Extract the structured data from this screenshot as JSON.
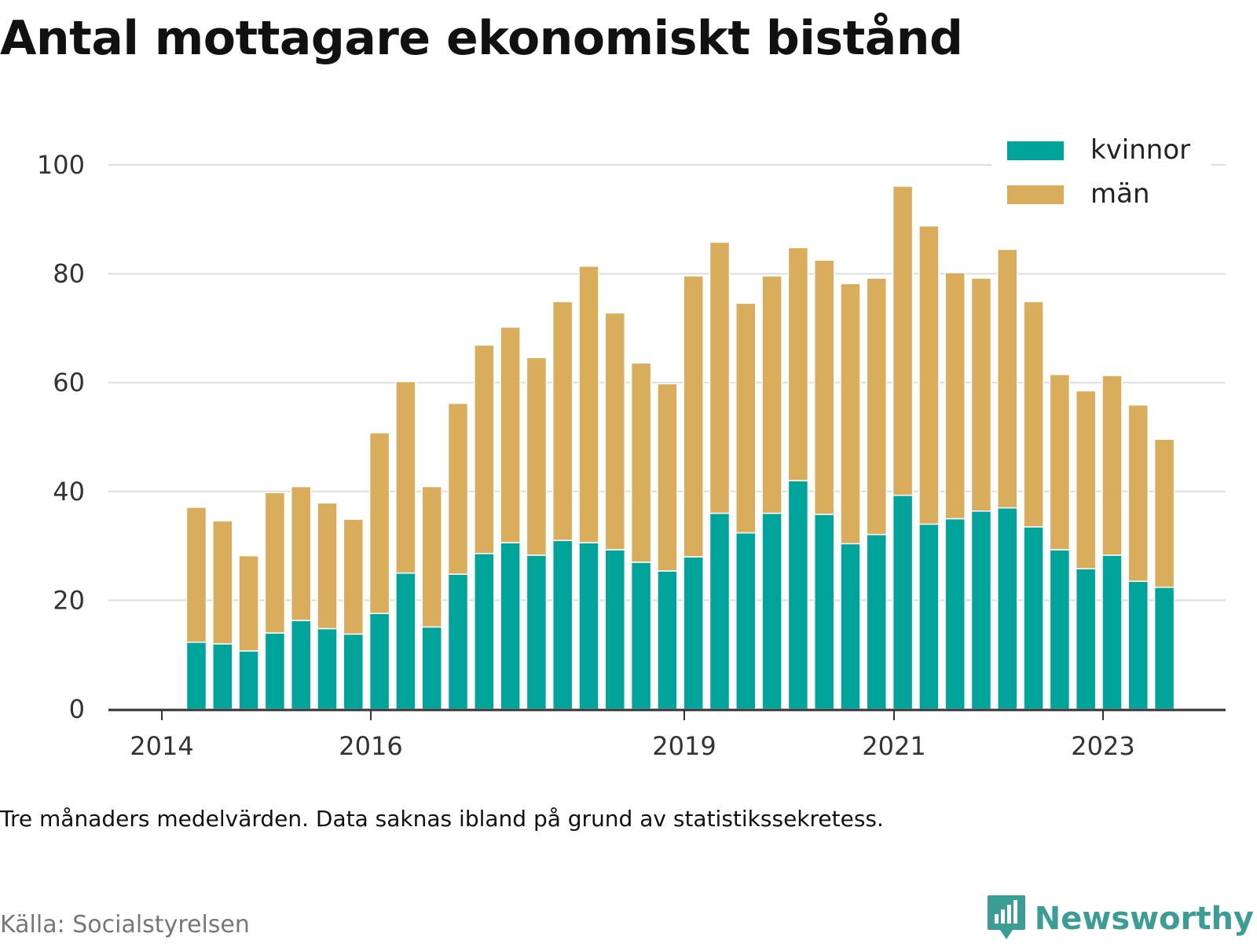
{
  "title": "Antal mottagare ekonomiskt bistånd",
  "note": "Tre månaders medelvärden. Data saknas ibland på grund av statistikssekretess.",
  "source": "Källa: Socialstyrelsen",
  "brand": {
    "name": "Newsworthy",
    "icon": "newsworthy-logo-icon",
    "color": "#3a9e94"
  },
  "colors": {
    "kvinnor": "#00a49a",
    "man": "#d9ad5b",
    "grid": "#dddddd",
    "axis": "#333333"
  },
  "chart_data": {
    "type": "bar",
    "stacked": true,
    "ylim": [
      0,
      100
    ],
    "yticks": [
      0,
      20,
      40,
      60,
      80,
      100
    ],
    "xticks": [
      "2014",
      "2016",
      "2019",
      "2021",
      "2023"
    ],
    "grid": true,
    "legend_position": "top-right",
    "series": [
      {
        "name": "kvinnor",
        "color": "#00a49a",
        "values": [
          12.3,
          12.0,
          10.7,
          14.0,
          16.3,
          14.8,
          13.8,
          17.6,
          25.0,
          15.1,
          24.8,
          28.6,
          30.6,
          28.3,
          31.0,
          30.6,
          29.3,
          27.0,
          25.4,
          28.0,
          36.0,
          32.4,
          36.0,
          42.0,
          35.8,
          30.4,
          32.1,
          39.3,
          34.0,
          35.0,
          36.4,
          37.0,
          33.5,
          29.3,
          25.8,
          28.3,
          23.5,
          22.4
        ]
      },
      {
        "name": "män",
        "color": "#d9ad5b",
        "values": [
          24.8,
          22.6,
          17.5,
          25.8,
          24.6,
          23.1,
          21.1,
          33.2,
          35.2,
          25.8,
          31.4,
          38.3,
          39.6,
          36.3,
          43.9,
          50.8,
          43.5,
          36.6,
          34.4,
          51.6,
          49.8,
          42.2,
          43.6,
          42.8,
          46.7,
          47.8,
          47.1,
          56.8,
          54.8,
          45.2,
          42.8,
          47.5,
          41.4,
          32.2,
          32.7,
          33.0,
          32.4,
          27.2
        ]
      }
    ]
  }
}
